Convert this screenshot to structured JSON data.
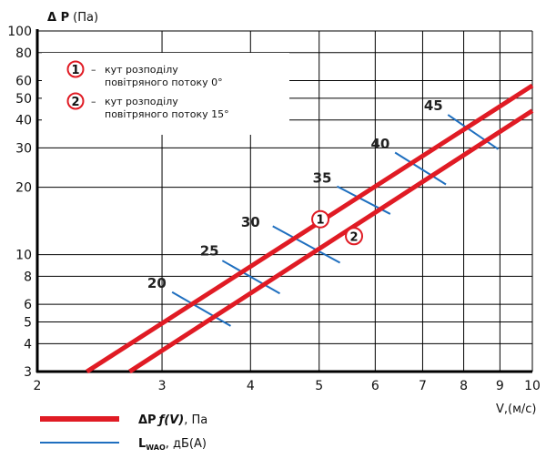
{
  "chart_data": {
    "type": "line",
    "x_scale": "log",
    "y_scale": "log",
    "xlabel": "V,(м/с)",
    "ylabel_symbol": "Δ P",
    "ylabel_unit": "(Па)",
    "xlim": [
      2,
      10
    ],
    "ylim": [
      3,
      100
    ],
    "x_ticks": [
      2,
      3,
      4,
      5,
      6,
      7,
      8,
      9,
      10
    ],
    "y_ticks": [
      3,
      4,
      5,
      6,
      8,
      10,
      20,
      30,
      40,
      50,
      60,
      80,
      100
    ],
    "grid": true,
    "series": [
      {
        "marker": "1",
        "color": "#e01b24",
        "x": [
          2.35,
          10
        ],
        "y": [
          3,
          57
        ]
      },
      {
        "marker": "2",
        "color": "#e01b24",
        "x": [
          2.7,
          10
        ],
        "y": [
          3,
          44
        ]
      }
    ],
    "noise_lines": [
      {
        "label": "20",
        "x1": 3.1,
        "y1": 6.8,
        "x2": 3.75,
        "y2": 4.8,
        "label_x": 2.95,
        "label_y": 7.1
      },
      {
        "label": "25",
        "x1": 3.65,
        "y1": 9.4,
        "x2": 4.4,
        "y2": 6.7,
        "label_x": 3.5,
        "label_y": 9.9
      },
      {
        "label": "30",
        "x1": 4.3,
        "y1": 13.4,
        "x2": 5.35,
        "y2": 9.2,
        "label_x": 4.0,
        "label_y": 13.3
      },
      {
        "label": "35",
        "x1": 5.3,
        "y1": 20.2,
        "x2": 6.3,
        "y2": 15.2,
        "label_x": 5.05,
        "label_y": 21.0
      },
      {
        "label": "40",
        "x1": 6.4,
        "y1": 28.6,
        "x2": 7.55,
        "y2": 20.6,
        "label_x": 6.1,
        "label_y": 29.8
      },
      {
        "label": "45",
        "x1": 7.6,
        "y1": 42.2,
        "x2": 8.95,
        "y2": 29.6,
        "label_x": 7.25,
        "label_y": 44.3
      }
    ],
    "curve_markers": [
      {
        "label": "1",
        "x": 5.02,
        "y": 14.4
      },
      {
        "label": "2",
        "x": 5.6,
        "y": 12.1
      }
    ],
    "notes": [
      {
        "marker": "1",
        "lines": [
          "кут розподілу",
          "повітряного потоку 0°"
        ]
      },
      {
        "marker": "2",
        "lines": [
          "кут розподілу",
          "повітряного потоку 15°"
        ]
      }
    ],
    "note_dash": "–",
    "bottom_legend": [
      {
        "kind": "pressure",
        "color": "#e01b24",
        "text": ", Па",
        "symbol": "ΔP",
        "func": "ƒ(V)"
      },
      {
        "kind": "noise",
        "color": "#1f6fbf",
        "text": ", дБ(А)",
        "symbol": "L",
        "sub": "WAO"
      }
    ]
  }
}
